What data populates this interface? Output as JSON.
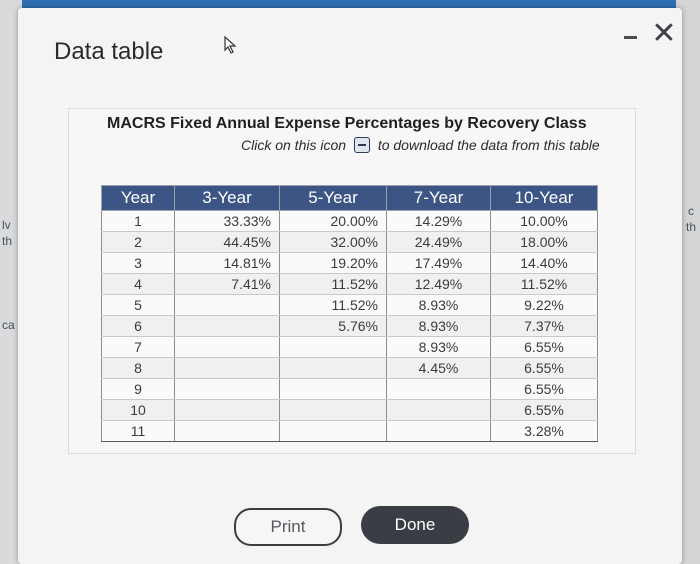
{
  "dialog": {
    "title": "Data table",
    "minimize_icon": "minimize-icon",
    "close_glyph": "✕"
  },
  "table": {
    "title": "MACRS Fixed Annual Expense Percentages by Recovery Class",
    "download_prefix": "Click on this icon",
    "download_suffix": "to download the data from this table",
    "columns": [
      "Year",
      "3-Year",
      "5-Year",
      "7-Year",
      "10-Year"
    ],
    "rows": [
      [
        "1",
        "33.33%",
        "20.00%",
        "14.29%",
        "10.00%"
      ],
      [
        "2",
        "44.45%",
        "32.00%",
        "24.49%",
        "18.00%"
      ],
      [
        "3",
        "14.81%",
        "19.20%",
        "17.49%",
        "14.40%"
      ],
      [
        "4",
        "7.41%",
        "11.52%",
        "12.49%",
        "11.52%"
      ],
      [
        "5",
        "",
        "11.52%",
        "8.93%",
        "9.22%"
      ],
      [
        "6",
        "",
        "5.76%",
        "8.93%",
        "7.37%"
      ],
      [
        "7",
        "",
        "",
        "8.93%",
        "6.55%"
      ],
      [
        "8",
        "",
        "",
        "4.45%",
        "6.55%"
      ],
      [
        "9",
        "",
        "",
        "",
        "6.55%"
      ],
      [
        "10",
        "",
        "",
        "",
        "6.55%"
      ],
      [
        "11",
        "",
        "",
        "",
        "3.28%"
      ]
    ]
  },
  "buttons": {
    "print": "Print",
    "done": "Done"
  },
  "background_fragments": [
    "lv",
    "th",
    "ca",
    "c",
    "th"
  ],
  "colors": {
    "header_bg": "#3c5585",
    "done_bg": "#3a3d43"
  }
}
